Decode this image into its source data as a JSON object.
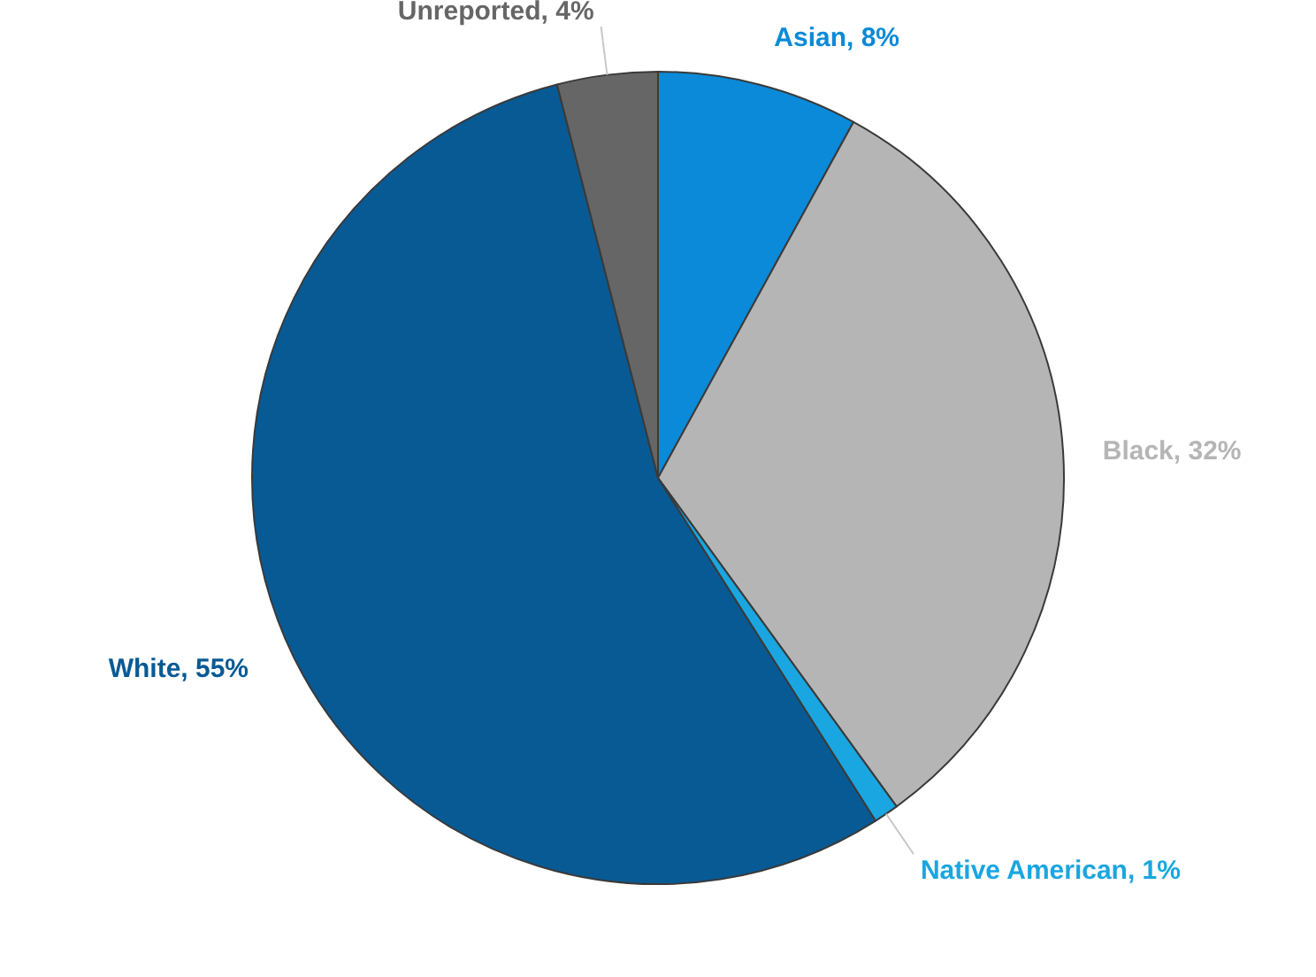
{
  "chart_data": {
    "type": "pie",
    "categories": [
      "Asian",
      "Black",
      "Native American",
      "White",
      "Unreported"
    ],
    "values": [
      8,
      32,
      1,
      55,
      4
    ],
    "value_labels": [
      "8%",
      "32%",
      "1%",
      "55%",
      "4%"
    ],
    "colors": [
      "#0a8ad8",
      "#b5b5b5",
      "#1aa6e0",
      "#085a95",
      "#666666"
    ],
    "legend": false
  }
}
